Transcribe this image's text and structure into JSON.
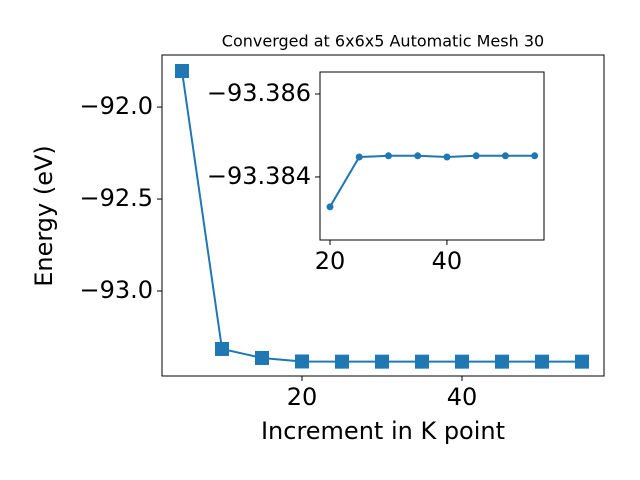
{
  "chart_data": [
    {
      "type": "line",
      "title": "Converged at 6x6x5 Automatic Mesh 30",
      "x_label": "Increment in K point",
      "y_label": "Energy (eV)",
      "x": [
        5,
        10,
        15,
        20,
        25,
        30,
        35,
        40,
        45,
        50,
        55
      ],
      "series": [
        {
          "color": "#1f77b4",
          "marker": "square",
          "values": [
            -91.804,
            -93.315,
            -93.364,
            -93.383,
            -93.384,
            -93.384,
            -93.384,
            -93.384,
            -93.384,
            -93.384,
            -93.384
          ]
        }
      ],
      "xlim": [
        2.5,
        57.75
      ],
      "ylim": [
        -93.462,
        -91.717
      ],
      "xticks": [
        20,
        40
      ],
      "yticks": [
        {
          "value": -92,
          "label": "−92.0"
        },
        {
          "value": -92.5,
          "label": "−92.5"
        },
        {
          "value": -93,
          "label": "−93.0"
        }
      ]
    },
    {
      "type": "line",
      "x": [
        20,
        25,
        30,
        35,
        40,
        45,
        50,
        55
      ],
      "series": [
        {
          "color": "#1f77b4",
          "marker": "circle",
          "values": [
            -93.38328,
            -93.38448,
            -93.38451,
            -93.38451,
            -93.38448,
            -93.38451,
            -93.38451,
            -93.38451
          ]
        }
      ],
      "xlim": [
        18.29,
        56.6
      ],
      "ylim": [
        -93.38248,
        -93.38653
      ],
      "xticks": [
        20,
        40
      ],
      "yticks": [
        {
          "value": -93.386,
          "label": "−93.386"
        },
        {
          "value": -93.384,
          "label": "−93.384"
        }
      ]
    }
  ]
}
